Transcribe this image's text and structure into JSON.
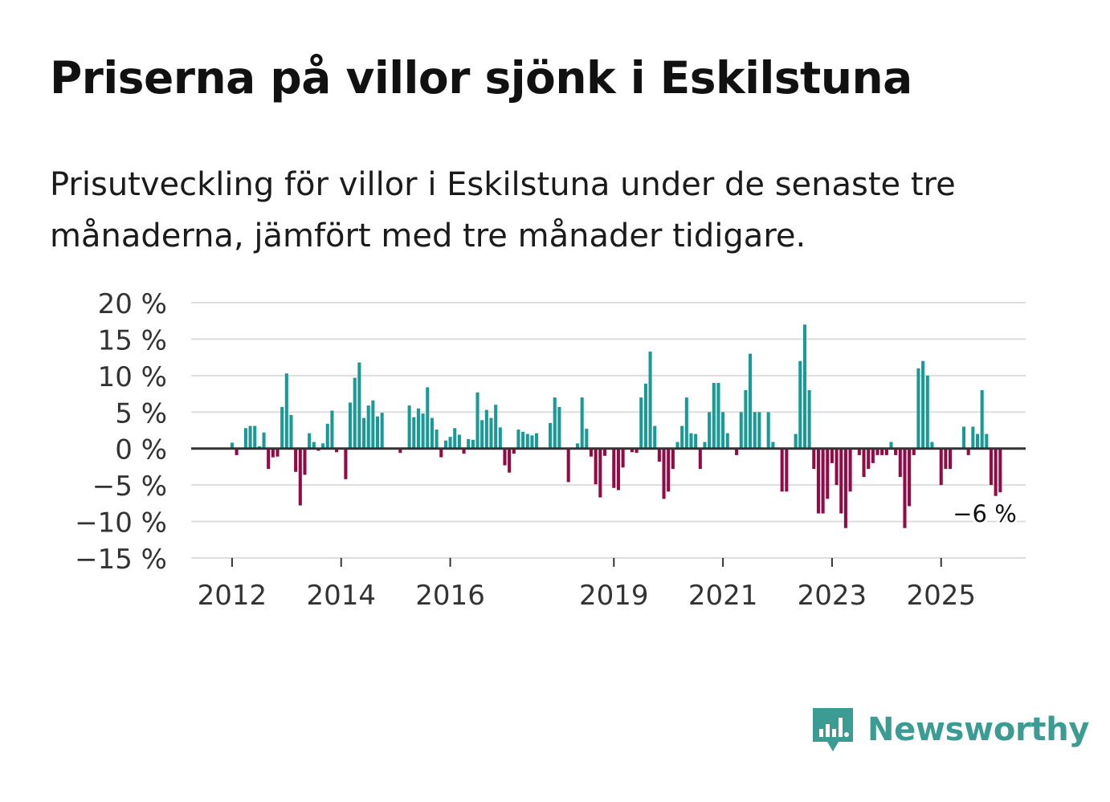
{
  "title": "Priserna på villor sjönk i Eskilstuna",
  "subtitle": "Prisutveckling för villor i Eskilstuna under de senaste tre månaderna, jämfört med tre månader tidigare.",
  "brand": "Newsworthy",
  "colors": {
    "positive": "#1a9a96",
    "negative": "#930b46",
    "brand": "#3b9c94",
    "grid": "#dddddd",
    "zero_line": "#333333"
  },
  "chart_data": {
    "type": "bar",
    "title": "",
    "xlabel": "",
    "ylabel": "",
    "ylim": [
      -15,
      20
    ],
    "y_ticks": [
      20,
      15,
      10,
      5,
      0,
      -5,
      -10,
      -15
    ],
    "y_tick_labels": [
      "20 %",
      "15 %",
      "10 %",
      "5 %",
      "0 %",
      "−5 %",
      "−10 %",
      "−15 %"
    ],
    "x_ticks": [
      2012,
      2014,
      2016,
      2019,
      2021,
      2023,
      2025
    ],
    "x_tick_labels": [
      "2012",
      "2014",
      "2016",
      "2019",
      "2021",
      "2023",
      "2025"
    ],
    "x_start": 2011.25,
    "x_end": 2026.55,
    "frequency": "monthly",
    "last_value_label": "−6 %",
    "values": [
      0,
      0,
      0,
      0,
      0,
      0,
      0,
      0.8,
      -0.9,
      0,
      2.8,
      3.1,
      3.1,
      0.3,
      2.2,
      -2.8,
      -1.2,
      -1.1,
      5.7,
      10.3,
      4.6,
      -3.2,
      -7.8,
      -3.6,
      2.1,
      0.9,
      -0.3,
      0.7,
      3.4,
      5.2,
      -0.5,
      0,
      -4.2,
      6.3,
      9.7,
      11.8,
      4.2,
      5.9,
      6.6,
      4.4,
      4.9,
      0,
      0,
      0,
      -0.6,
      0,
      5.9,
      4.3,
      5.5,
      4.8,
      8.4,
      4.2,
      2.6,
      -1.2,
      1.1,
      1.6,
      2.8,
      1.9,
      -0.7,
      1.3,
      1.2,
      7.7,
      3.9,
      5.3,
      4.2,
      6.0,
      2.9,
      -2.3,
      -3.3,
      -0.7,
      2.6,
      2.3,
      2.0,
      1.8,
      2.1,
      0,
      0,
      3.5,
      7.0,
      5.7,
      0,
      -4.6,
      0,
      0.7,
      7.0,
      2.7,
      -1.1,
      -4.9,
      -6.7,
      -1.0,
      0,
      -5.4,
      -5.7,
      -2.6,
      0,
      -0.5,
      -0.6,
      7.0,
      8.9,
      13.3,
      3.1,
      -1.8,
      -6.9,
      -5.9,
      -2.8,
      0.9,
      3.1,
      7.0,
      2.1,
      2.0,
      -2.8,
      0.9,
      5.0,
      9.0,
      9.0,
      5.0,
      2.1,
      0,
      -0.9,
      5.0,
      8.0,
      13.0,
      5.0,
      5.0,
      0,
      5.0,
      0.9,
      0,
      -5.9,
      -5.9,
      0,
      2.0,
      12.0,
      17.0,
      8.0,
      -2.8,
      -8.9,
      -8.9,
      -6.9,
      -2.0,
      -5.0,
      -8.9,
      -10.9,
      -5.9,
      0,
      -0.9,
      -3.9,
      -2.8,
      -2.0,
      -0.9,
      -0.9,
      -0.9,
      0.9,
      -0.9,
      -3.9,
      -10.9,
      -7.9,
      -0.9,
      11.0,
      12.0,
      10.0,
      0.9,
      0,
      -5.0,
      -2.8,
      -2.8,
      0,
      0,
      3.0,
      -0.9,
      3.0,
      2.0,
      8.0,
      2.0,
      -5.0,
      -6.5,
      -6.0
    ]
  }
}
